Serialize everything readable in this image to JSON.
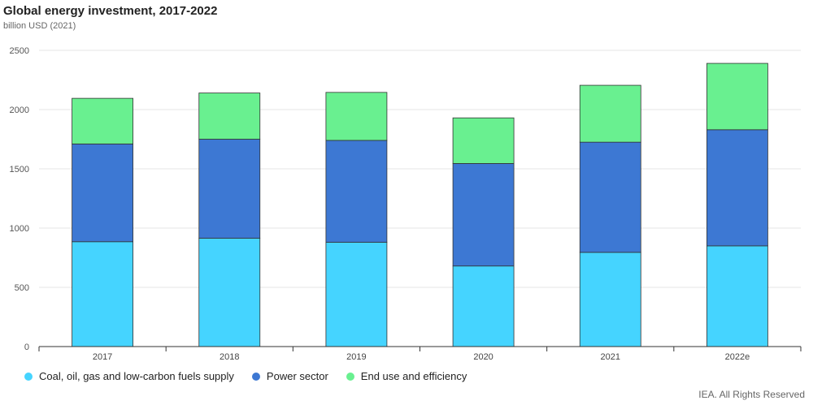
{
  "header": {
    "title": "Global energy investment, 2017-2022",
    "subtitle": "billion USD (2021)"
  },
  "credit": "IEA. All Rights Reserved",
  "colors": {
    "coal": "#45d4ff",
    "power": "#3d78d3",
    "enduse": "#69f090"
  },
  "chart_data": {
    "type": "bar",
    "stacked": true,
    "categories": [
      "2017",
      "2018",
      "2019",
      "2020",
      "2021",
      "2022e"
    ],
    "series": [
      {
        "name": "Coal, oil, gas and low-carbon fuels supply",
        "color": "#45d4ff",
        "values": [
          885,
          915,
          880,
          680,
          795,
          850
        ]
      },
      {
        "name": "Power sector",
        "color": "#3d78d3",
        "values": [
          825,
          835,
          860,
          865,
          930,
          980
        ]
      },
      {
        "name": "End use and efficiency",
        "color": "#69f090",
        "values": [
          385,
          390,
          405,
          385,
          480,
          560
        ]
      }
    ],
    "ylim": [
      0,
      2500
    ],
    "yticks": [
      0,
      500,
      1000,
      1500,
      2000,
      2500
    ],
    "grid": true,
    "legend_position": "bottom-left"
  }
}
